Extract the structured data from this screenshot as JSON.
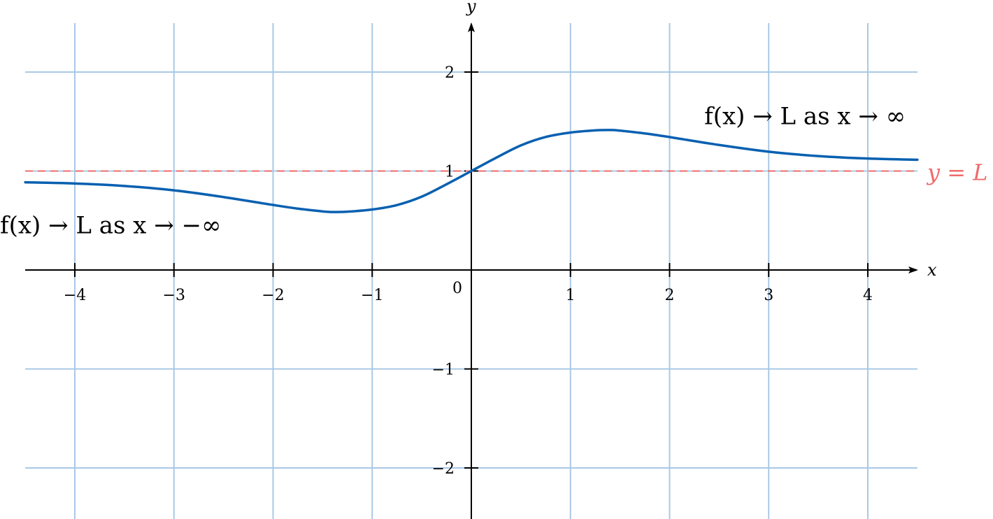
{
  "chart_data": {
    "type": "line",
    "title": "",
    "xlabel": "x",
    "ylabel": "y",
    "xlim": [
      -4.5,
      4.5
    ],
    "ylim": [
      -2.5,
      2.5
    ],
    "x_ticks": [
      "−4",
      "−3",
      "−2",
      "−1",
      "1",
      "2",
      "3",
      "4"
    ],
    "x_tick_values": [
      -4,
      -3,
      -2,
      -1,
      1,
      2,
      3,
      4
    ],
    "y_ticks": [
      "−2",
      "−1",
      "1",
      "2"
    ],
    "y_tick_values": [
      -2,
      -1,
      1,
      2
    ],
    "origin_label": "0",
    "grid": true,
    "colors": {
      "curve": "#0860b0",
      "asymptote": "#f06a6a",
      "grid": "#a9c8e6",
      "axis": "#000000"
    },
    "series": [
      {
        "x": [
          -4.5,
          -4,
          -3.5,
          -3,
          -2.5,
          -2,
          -1.75,
          -1.5,
          -1.414,
          -1.25,
          -1,
          -0.75,
          -0.5,
          -0.25,
          0,
          0.25,
          0.5,
          0.75,
          1,
          1.25,
          1.414,
          1.5,
          1.75,
          2,
          2.5,
          3,
          3.5,
          4,
          4.5
        ],
        "y": [
          0.886,
          0.874,
          0.849,
          0.805,
          0.737,
          0.657,
          0.62,
          0.592,
          0.586,
          0.589,
          0.611,
          0.656,
          0.741,
          0.866,
          1.0,
          1.134,
          1.259,
          1.344,
          1.389,
          1.411,
          1.414,
          1.408,
          1.38,
          1.343,
          1.263,
          1.195,
          1.151,
          1.126,
          1.114
        ]
      }
    ],
    "asymptote": {
      "y": 1,
      "label": "y = L"
    },
    "annotations": [
      {
        "text": "f(x) → L as x → ∞",
        "x": 2.35,
        "y": 1.55
      },
      {
        "text": "f(x) → L as x → −∞",
        "x": -4.75,
        "y": 0.45
      }
    ]
  }
}
